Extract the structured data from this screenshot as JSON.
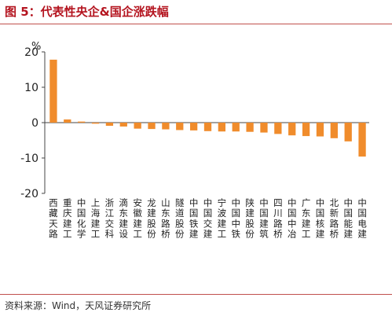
{
  "figure": {
    "title": "图 5：代表性央企&国企涨跌幅",
    "source": "资料来源：Wind，天风证券研究所"
  },
  "colors": {
    "bar": "#f08c2c",
    "axis": "#444444",
    "title": "#b4141f",
    "rule": "#c0504d"
  },
  "chart_data": {
    "type": "bar",
    "title": "",
    "xlabel": "",
    "ylabel": "%",
    "ylim": [
      -20,
      20
    ],
    "yticks": [
      -20,
      -10,
      0,
      10,
      20
    ],
    "grid": false,
    "legend": "none",
    "categories": [
      "西藏天路",
      "重庆建工",
      "中国化学",
      "上海建工",
      "浙江交科",
      "滴东建设",
      "安徽建工",
      "龙建股份",
      "山东路桥",
      "隧道股份",
      "中国铁建",
      "中国交建",
      "宁波建工",
      "中国中铁",
      "陕建股份",
      "中国建筑",
      "四川路桥",
      "中国中冶",
      "广东建工",
      "中国核建",
      "北新路桥",
      "中国能建",
      "中国电建"
    ],
    "values": [
      17.8,
      0.9,
      0.3,
      -0.3,
      -0.9,
      -1.1,
      -1.7,
      -1.8,
      -1.9,
      -2.1,
      -2.2,
      -2.4,
      -2.5,
      -2.5,
      -2.6,
      -2.8,
      -3.2,
      -3.6,
      -3.8,
      -3.9,
      -4.4,
      -5.3,
      -9.6
    ]
  }
}
